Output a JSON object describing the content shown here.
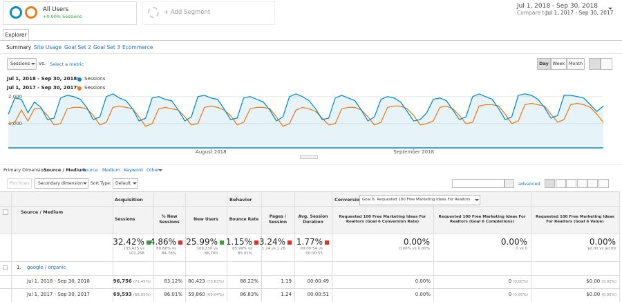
{
  "segments": [
    {
      "name": "All Users",
      "detail": "+0.00% Sessions"
    },
    {
      "name": "+ Add Segment"
    }
  ],
  "date_range": {
    "current": "Jul 1, 2018 - Sep 30, 2018",
    "compare_label": "Compare to:",
    "compare": "Jul 1, 2017 - Sep 30, 2017"
  },
  "tab": "Explorer",
  "subtabs": [
    "Summary",
    "Site Usage",
    "Goal Set 2",
    "Goal Set 3",
    "Ecommerce"
  ],
  "metric": {
    "selected": "Sessions",
    "vs": "vs.",
    "select": "Select a metric"
  },
  "granularity": [
    "Day",
    "Week",
    "Month"
  ],
  "chart_data": {
    "type": "line",
    "categories": [
      null,
      null,
      null,
      null,
      null,
      null,
      null,
      null,
      null,
      null,
      null,
      null,
      null,
      null,
      null,
      null,
      null,
      null,
      null,
      null,
      null,
      null,
      null,
      null,
      null,
      null,
      null,
      null,
      null,
      null,
      null,
      "August 2018",
      null,
      null,
      null,
      null,
      null,
      null,
      null,
      null,
      null,
      null,
      null,
      null,
      null,
      null,
      null,
      null,
      null,
      null,
      null,
      null,
      null,
      null,
      null,
      null,
      null,
      null,
      null,
      null,
      null,
      null,
      "September 2018",
      null,
      null,
      null,
      null,
      null,
      null,
      null,
      null,
      null,
      null,
      null,
      null,
      null,
      null,
      null,
      null,
      null,
      null,
      null,
      null,
      null,
      null,
      null,
      null,
      null,
      null,
      null,
      null,
      null
    ],
    "series": [
      {
        "name": "Sessions",
        "period": "Jul 1, 2018 - Sep 30, 2018:",
        "color": "#058dc7",
        "values": [
          1350,
          1950,
          1900,
          1400,
          1800,
          1600,
          1150,
          1200,
          1950,
          2050,
          2000,
          1900,
          1600,
          1150,
          1250,
          2000,
          2100,
          1950,
          1850,
          1550,
          1100,
          1200,
          1950,
          2000,
          1900,
          1850,
          1500,
          1100,
          1250,
          2000,
          2050,
          1950,
          1900,
          1550,
          1150,
          1200,
          1950,
          2000,
          1900,
          1800,
          1500,
          1100,
          1250,
          2000,
          2100,
          2000,
          1850,
          1550,
          1150,
          1200,
          1950,
          2050,
          1950,
          1850,
          1500,
          1100,
          1250,
          1900,
          2000,
          1950,
          1800,
          1450,
          1100,
          1150,
          1400,
          1900,
          1950,
          1850,
          1500,
          1150,
          1250,
          2000,
          2100,
          2000,
          1900,
          1550,
          1150,
          1250,
          2050,
          2100,
          2050,
          1900,
          1600,
          1200,
          1300,
          2050,
          2050,
          2000,
          1950,
          1700,
          1450,
          1650
        ]
      },
      {
        "name": "Sessions",
        "period": "Jul 1, 2017 - Sep 30, 2017:",
        "color": "#ed7e17",
        "values": [
          1000,
          1050,
          1500,
          1100,
          1550,
          1550,
          1300,
          950,
          1000,
          1550,
          1600,
          1600,
          1550,
          1300,
          950,
          1050,
          1600,
          1650,
          1600,
          1550,
          1250,
          900,
          1000,
          1550,
          1600,
          1550,
          1500,
          1250,
          950,
          1000,
          1600,
          1650,
          1600,
          1500,
          1300,
          950,
          1050,
          1550,
          1600,
          1600,
          1550,
          1250,
          900,
          1000,
          1500,
          1600,
          1550,
          1450,
          1200,
          950,
          1000,
          1550,
          1600,
          1600,
          1500,
          1250,
          950,
          1050,
          1600,
          1650,
          1650,
          1550,
          1300,
          950,
          1000,
          1100,
          1600,
          1650,
          1550,
          1300,
          1000,
          1050,
          1650,
          1700,
          1700,
          1650,
          1350,
          1000,
          1100,
          1700,
          1750,
          1700,
          1650,
          1350,
          1050,
          1150,
          1700,
          1750,
          1700,
          1600,
          1350,
          1050
        ]
      }
    ],
    "ylim": [
      100,
      2200
    ],
    "yticks": [
      {
        "value": 1000,
        "label": "1,000"
      },
      {
        "value": 2000,
        "label": "2,000"
      }
    ],
    "grid": true
  },
  "dimensions": {
    "label": "Primary Dimension:",
    "selected": "Source / Medium",
    "options": [
      "Source",
      "Medium",
      "Keyword",
      "Other"
    ]
  },
  "table_controls": {
    "plot_rows": "Plot Rows",
    "secondary": "Secondary dimension",
    "sort_label": "Sort Type:",
    "sort": "Default",
    "advanced": "advanced"
  },
  "table": {
    "groups": [
      "Acquisition",
      "Behavior",
      "Conversions"
    ],
    "goal_select": "Goal 6: Requested 100 Free Marketing Ideas For Realtors",
    "dimension_header": "Source / Medium",
    "columns": [
      "Sessions",
      "% New Sessions",
      "New Users",
      "Bounce Rate",
      "Pages / Session",
      "Avg. Session Duration",
      "Requested 100 Free Marketing Ideas For Realtors (Goal 6 Conversion Rate)",
      "Requested 100 Free Marketing Ideas For Realtors (Goal 6 Completions)",
      "Requested 100 Free Marketing Ideas For Realtors (Goal 6 Value)"
    ],
    "totals": [
      [
        "32.42%",
        "135,425 vs",
        "102,266"
      ],
      [
        "4.86%",
        "80.66% vs",
        "84.78%"
      ],
      [
        "25.99%",
        "109,230 vs",
        "86,700"
      ],
      [
        "1.15%",
        "85.99% vs",
        "85.01%"
      ],
      [
        "3.24%",
        "1.24 vs 1.28"
      ],
      [
        "1.77%",
        "00:00:54 vs",
        "00:00:55"
      ],
      [
        "0.00%",
        "0.00% vs 0.00%"
      ],
      [
        "0.00%",
        "0 vs 0"
      ],
      [
        "0.00%",
        "$0.00 vs $0.00"
      ]
    ],
    "group_row": {
      "index": "1.",
      "label": "google / organic"
    },
    "rows": [
      {
        "label": "Jul 1, 2018 - Sep 30, 2018",
        "cells": [
          [
            "96,756",
            "(71.45%)"
          ],
          [
            "83.12%"
          ],
          [
            "80,423",
            "(73.63%)"
          ],
          [
            "88.22%"
          ],
          [
            "1.19"
          ],
          [
            "00:00:49"
          ],
          [
            "0.00%"
          ],
          [
            "0",
            "(0.00%)"
          ],
          [
            "$0.00",
            "(0.00%)"
          ]
        ]
      },
      {
        "label": "Jul 1, 2017 - Sep 30, 2017",
        "cells": [
          [
            "69,593",
            "(68.05%)"
          ],
          [
            "86.01%"
          ],
          [
            "59,860",
            "(69.04%)"
          ],
          [
            "86.83%"
          ],
          [
            "1.24"
          ],
          [
            "00:00:51"
          ],
          [
            "0.00%"
          ],
          [
            "0",
            "(0.00%)"
          ],
          [
            "$0.00",
            "(0.00%)"
          ]
        ]
      }
    ]
  }
}
